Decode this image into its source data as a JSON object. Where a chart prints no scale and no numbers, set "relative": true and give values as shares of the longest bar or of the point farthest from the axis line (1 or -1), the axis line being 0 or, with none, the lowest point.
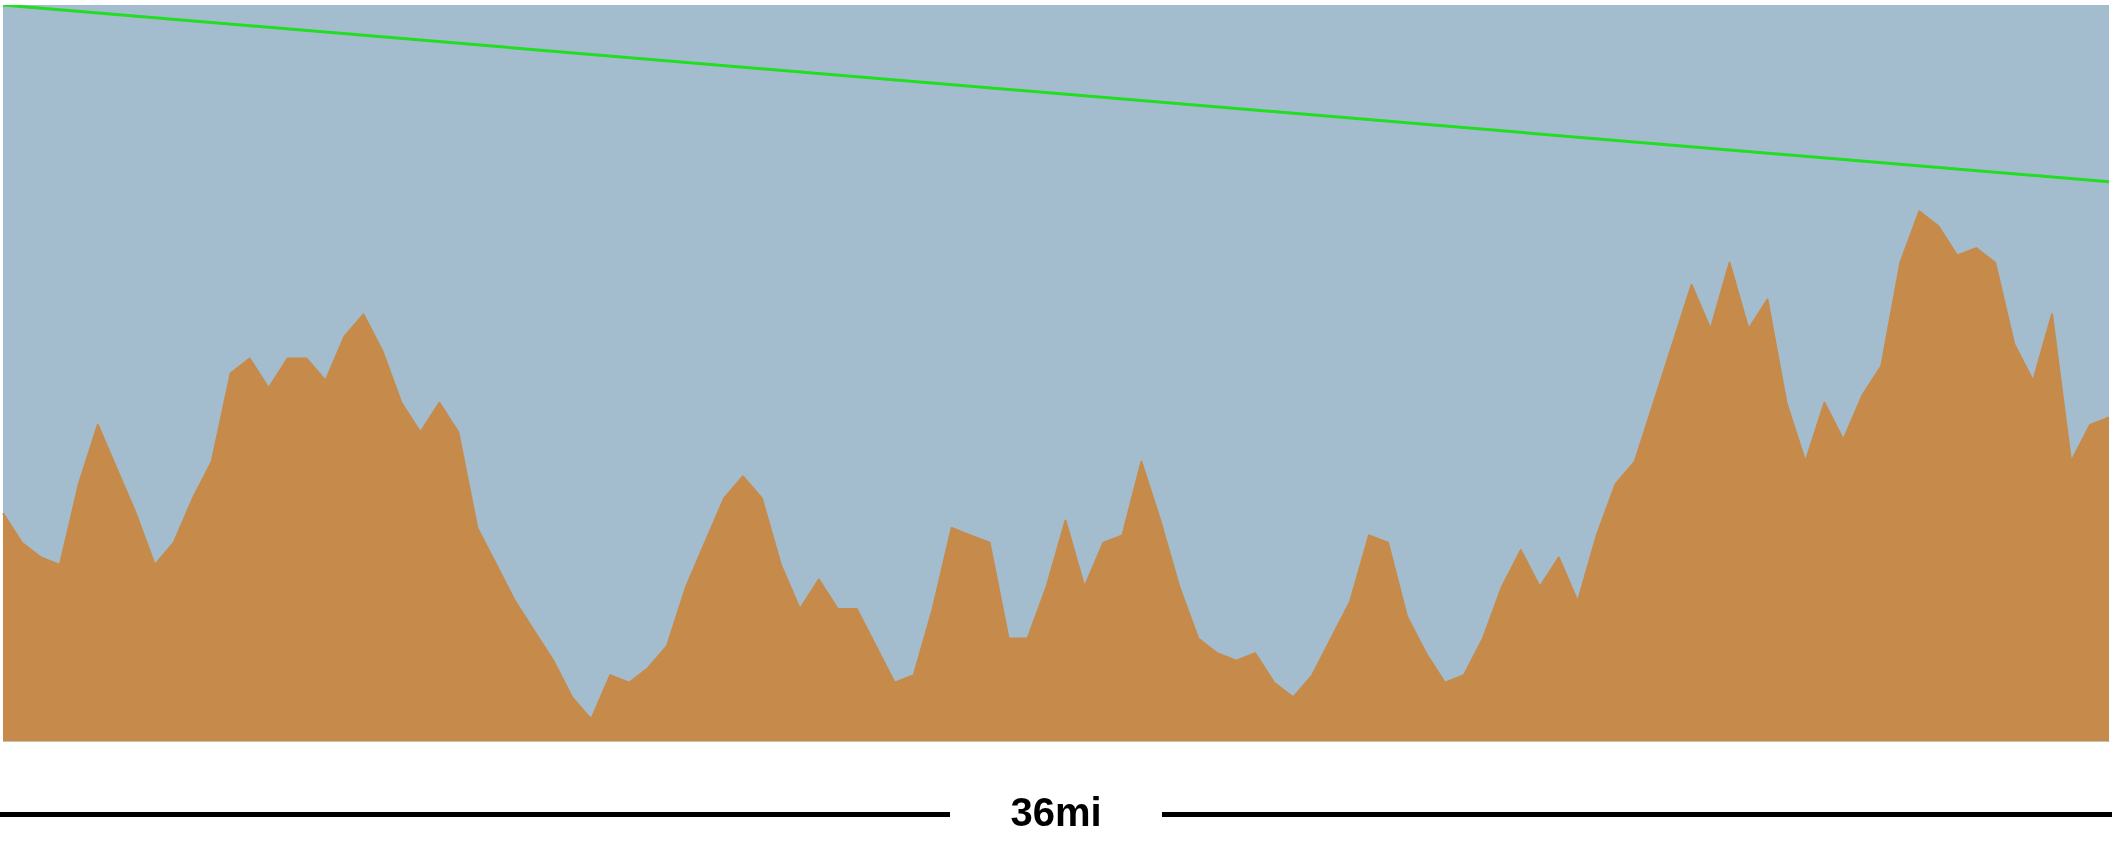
{
  "chart_data": {
    "type": "area",
    "relative": true,
    "categories": [
      null,
      null,
      null,
      null,
      null,
      null,
      null,
      null,
      null,
      null,
      null,
      null,
      null,
      null,
      null,
      null,
      null,
      null,
      null,
      null,
      null,
      null,
      null,
      null,
      null,
      null,
      null,
      null,
      null,
      null,
      null,
      null,
      null,
      null,
      null,
      null,
      null,
      null,
      null,
      null,
      null,
      null,
      null,
      null,
      null,
      null,
      null,
      null,
      null,
      null,
      null,
      null,
      null,
      null,
      null,
      null,
      null,
      null,
      null,
      null,
      null,
      null,
      null,
      null,
      null,
      null,
      null,
      null,
      null,
      null,
      null,
      null,
      null,
      null,
      null,
      null,
      null,
      null,
      null,
      null,
      null,
      null,
      null,
      null,
      null,
      null,
      null,
      null,
      null,
      null,
      null,
      null,
      null,
      null,
      null,
      null,
      null,
      null,
      null,
      null,
      null,
      null,
      null,
      null,
      null,
      null,
      null,
      null,
      null,
      null,
      null,
      null
    ],
    "grid": false,
    "legend": false,
    "annotations": [
      "36mi"
    ],
    "series": [
      {
        "color": "#c68b4a",
        "values": [
          0.31,
          0.27,
          0.25,
          0.24,
          0.35,
          0.43,
          0.37,
          0.31,
          0.24,
          0.27,
          0.33,
          0.38,
          0.5,
          0.52,
          0.48,
          0.52,
          0.52,
          0.49,
          0.55,
          0.58,
          0.53,
          0.46,
          0.42,
          0.46,
          0.42,
          0.29,
          0.24,
          0.19,
          0.15,
          0.11,
          0.06,
          0.03,
          0.09,
          0.08,
          0.1,
          0.13,
          0.21,
          0.27,
          0.33,
          0.36,
          0.33,
          0.24,
          0.18,
          0.22,
          0.18,
          0.18,
          0.13,
          0.08,
          0.09,
          0.18,
          0.29,
          0.28,
          0.27,
          0.14,
          0.14,
          0.21,
          0.3,
          0.21,
          0.27,
          0.28,
          0.38,
          0.3,
          0.21,
          0.14,
          0.12,
          0.11,
          0.12,
          0.08,
          0.06,
          0.09,
          0.14,
          0.19,
          0.28,
          0.27,
          0.17,
          0.12,
          0.08,
          0.09,
          0.14,
          0.21,
          0.26,
          0.21,
          0.25,
          0.19,
          0.28,
          0.35,
          0.38,
          0.46,
          0.54,
          0.62,
          0.56,
          0.65,
          0.56,
          0.6,
          0.46,
          0.38,
          0.46,
          0.41,
          0.47,
          0.51,
          0.65,
          0.72,
          0.7,
          0.66,
          0.67,
          0.65,
          0.54,
          0.49,
          0.58,
          0.38,
          0.43,
          0.44
        ]
      },
      {
        "type": "line",
        "color": "#22dd22",
        "values": [
          1,
          null,
          null,
          null,
          null,
          null,
          null,
          null,
          null,
          null,
          null,
          null,
          null,
          null,
          null,
          null,
          null,
          null,
          null,
          null,
          null,
          null,
          null,
          null,
          null,
          null,
          null,
          null,
          null,
          null,
          null,
          null,
          null,
          null,
          null,
          null,
          null,
          null,
          null,
          null,
          null,
          null,
          null,
          null,
          null,
          null,
          null,
          null,
          null,
          null,
          null,
          null,
          null,
          null,
          null,
          null,
          null,
          null,
          null,
          null,
          null,
          null,
          null,
          null,
          null,
          null,
          null,
          null,
          null,
          null,
          null,
          null,
          null,
          null,
          null,
          null,
          null,
          null,
          null,
          null,
          null,
          null,
          null,
          null,
          null,
          null,
          null,
          null,
          null,
          null,
          null,
          null,
          null,
          null,
          null,
          null,
          null,
          null,
          null,
          null,
          null,
          null,
          null,
          null,
          null,
          null,
          null,
          null,
          null,
          null,
          null,
          0.76
        ]
      }
    ]
  }
}
